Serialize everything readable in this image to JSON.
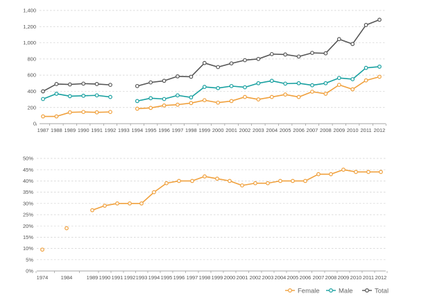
{
  "colors": {
    "Female": "#f0a03c",
    "Male": "#18a0a0",
    "Total": "#555555"
  },
  "chart_data": [
    {
      "type": "line",
      "title": "",
      "xlabel": "",
      "ylabel": "",
      "ylim": [
        0,
        1400
      ],
      "yticks": [
        0,
        200,
        400,
        600,
        800,
        1000,
        1200,
        1400
      ],
      "ytick_labels": [
        "0",
        "200",
        "400",
        "600",
        "800",
        "1,000",
        "1,200",
        "1,400"
      ],
      "grid": true,
      "categories": [
        "1987",
        "1988",
        "1989",
        "1990",
        "1991",
        "1992",
        "1993",
        "1994",
        "1995",
        "1996",
        "1997",
        "1998",
        "1999",
        "2000",
        "2001",
        "2002",
        "2003",
        "2004",
        "2005",
        "2006",
        "2007",
        "2008",
        "2009",
        "2010",
        "2011",
        "2012"
      ],
      "series": [
        {
          "name": "Total",
          "values": [
            400,
            490,
            485,
            495,
            490,
            480,
            null,
            465,
            510,
            530,
            585,
            580,
            750,
            700,
            745,
            785,
            800,
            860,
            855,
            830,
            875,
            870,
            1045,
            985,
            1220,
            1285
          ]
        },
        {
          "name": "Male",
          "values": [
            305,
            370,
            340,
            345,
            350,
            330,
            null,
            280,
            315,
            305,
            350,
            325,
            455,
            440,
            465,
            450,
            500,
            530,
            495,
            500,
            475,
            500,
            565,
            550,
            690,
            705
          ]
        },
        {
          "name": "Female",
          "values": [
            90,
            90,
            140,
            145,
            140,
            145,
            null,
            185,
            195,
            225,
            235,
            255,
            290,
            260,
            280,
            330,
            300,
            330,
            360,
            330,
            395,
            370,
            480,
            425,
            535,
            580
          ]
        }
      ]
    },
    {
      "type": "line",
      "title": "",
      "xlabel": "",
      "ylabel": "",
      "ylim": [
        0,
        50
      ],
      "yticks": [
        0,
        5,
        10,
        15,
        20,
        25,
        30,
        35,
        40,
        45,
        50
      ],
      "ytick_labels": [
        "0%",
        "5%",
        "10%",
        "15%",
        "20%",
        "25%",
        "30%",
        "35%",
        "40%",
        "45%",
        "50%"
      ],
      "grid": true,
      "categories": [
        "1974",
        "1984",
        "1989",
        "1990",
        "1991",
        "1992",
        "1993",
        "1994",
        "1995",
        "1996",
        "1997",
        "1998",
        "1999",
        "2000",
        "2001",
        "2002",
        "2003",
        "2004",
        "2005",
        "2006",
        "2007",
        "2008",
        "2009",
        "2010",
        "2011",
        "2012"
      ],
      "series": [
        {
          "name": "Female",
          "values": [
            9.5,
            19,
            27,
            29,
            30,
            30,
            30,
            35,
            39,
            40,
            40,
            42,
            41,
            40,
            38,
            39,
            39,
            40,
            40,
            40,
            43,
            43,
            45,
            44,
            44,
            44
          ]
        }
      ]
    }
  ],
  "legend": {
    "placement": "bottom-right",
    "items": [
      {
        "label": "Female",
        "color": "#f0a03c"
      },
      {
        "label": "Male",
        "color": "#18a0a0"
      },
      {
        "label": "Total",
        "color": "#555555"
      }
    ]
  }
}
